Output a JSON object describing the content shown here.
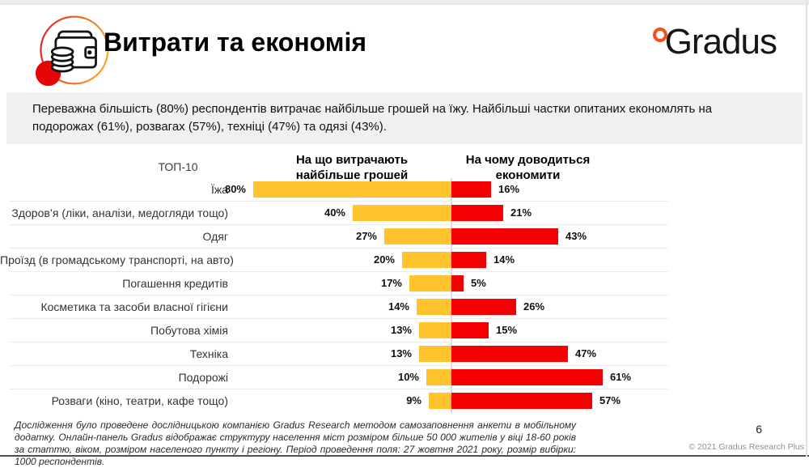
{
  "header": {
    "title": "Витрати та економія",
    "logo_text": "Gradus",
    "logo_accent_color": "#f4511e"
  },
  "summary": "Переважна більшість (80%) респондентів витрачає найбільше грошей на їжу. Найбільші частки опитаних економлять на подорожах (61%), розвагах (57%), техніці (47%) та одязі (43%).",
  "chart_data": {
    "type": "bar",
    "variant": "diverging-horizontal",
    "top_label": "ТОП-10",
    "unit": "%",
    "left_header": "На що витрачають\nнайбільше грошей",
    "right_header": "На чому доводиться\nекономити",
    "categories": [
      "Їжа",
      "Здоров’я (ліки, аналізи, медогляди тощо)",
      "Одяг",
      "Проїзд (в громадському транспорті, на авто)",
      "Погашення кредитів",
      "Косметика та засоби власної гігієни",
      "Побутова хімія",
      "Техніка",
      "Подорожі",
      "Розваги (кіно, театри, кафе тощо)"
    ],
    "series": [
      {
        "name": "На що витрачають найбільше грошей",
        "color": "#FEC32D",
        "direction": "left",
        "values": [
          80,
          40,
          27,
          20,
          17,
          14,
          13,
          13,
          10,
          9
        ]
      },
      {
        "name": "На чому доводиться економити",
        "color": "#F40000",
        "direction": "right",
        "values": [
          16,
          21,
          43,
          14,
          5,
          26,
          15,
          47,
          61,
          57
        ]
      }
    ],
    "xlim": [
      0,
      85
    ],
    "grid": false,
    "legend_position": "column-headers"
  },
  "footer": {
    "methodology": "Дослідження було проведене дослідницькою компанією Gradus Research методом самозаповнення анкети в мобільному додатку. Онлайн-панель Gradus відображає структуру населення міст розміром більше 50 000 жителів у віці 18-60 років за статтю, віком, розміром населеного пункту і регіону. Період проведення поля: 27 жовтня 2021 року, розмір вибірки: 1000 респондентів.",
    "page_number": "6",
    "copyright": "© 2021 Gradus Research Plus"
  }
}
